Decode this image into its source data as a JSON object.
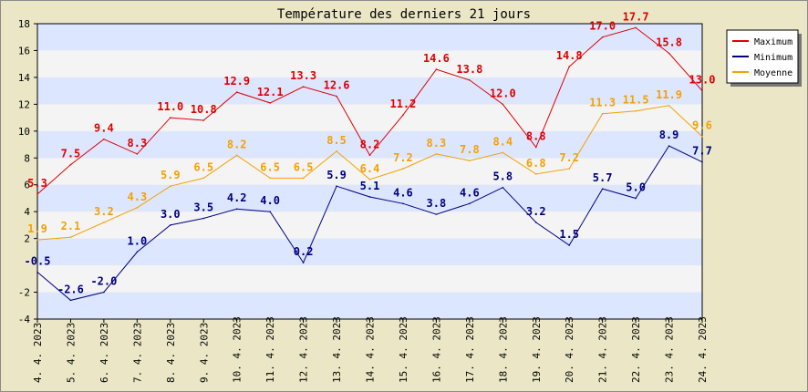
{
  "chart_data": {
    "type": "line",
    "title": "Température des derniers 21 jours",
    "x": [
      "4. 4. 2023",
      "5. 4. 2023",
      "6. 4. 2023",
      "7. 4. 2023",
      "8. 4. 2023",
      "9. 4. 2023",
      "10. 4. 2023",
      "11. 4. 2023",
      "12. 4. 2023",
      "13. 4. 2023",
      "14. 4. 2023",
      "15. 4. 2023",
      "16. 4. 2023",
      "17. 4. 2023",
      "18. 4. 2023",
      "19. 4. 2023",
      "20. 4. 2023",
      "21. 4. 2023",
      "22. 4. 2023",
      "23. 4. 2023",
      "24. 4. 2023"
    ],
    "ylim": [
      -4,
      18
    ],
    "yticks": [
      -4,
      -2,
      2,
      4,
      6,
      8,
      10,
      12,
      14,
      16,
      18
    ],
    "grid": "horizontal bands",
    "legend_position": "top-right",
    "series": [
      {
        "name": "Maximum",
        "color": "#e00000",
        "values": [
          5.3,
          7.5,
          9.4,
          8.3,
          11.0,
          10.8,
          12.9,
          12.1,
          13.3,
          12.6,
          8.2,
          11.2,
          14.6,
          13.8,
          12.0,
          8.8,
          14.8,
          17.0,
          17.7,
          15.8,
          13.0
        ],
        "labels": [
          "5.3",
          "7.5",
          "9.4",
          "8.3",
          "11.0",
          "10.8",
          "12.9",
          "12.1",
          "13.3",
          "12.6",
          "8.2",
          "11.2",
          "14.6",
          "13.8",
          "12.0",
          "8.8",
          "14.8",
          "17.0",
          "17.7",
          "15.8",
          "13.0"
        ]
      },
      {
        "name": "Minimum",
        "color": "#000080",
        "values": [
          -0.5,
          -2.6,
          -2.0,
          1.0,
          3.0,
          3.5,
          4.2,
          4.0,
          0.2,
          5.9,
          5.1,
          4.6,
          3.8,
          4.6,
          5.8,
          3.2,
          1.5,
          5.7,
          5.0,
          8.9,
          7.7
        ],
        "labels": [
          "-0.5",
          "-2.6",
          "-2.0",
          "1.0",
          "3.0",
          "3.5",
          "4.2",
          "4.0",
          "0.2",
          "5.9",
          "5.1",
          "4.6",
          "3.8",
          "4.6",
          "5.8",
          "3.2",
          "1.5",
          "5.7",
          "5.0",
          "8.9",
          "7.7"
        ]
      },
      {
        "name": "Moyenne",
        "color": "#f5a000",
        "values": [
          1.9,
          2.1,
          3.2,
          4.3,
          5.9,
          6.5,
          8.2,
          6.5,
          6.5,
          8.5,
          6.4,
          7.2,
          8.3,
          7.8,
          8.4,
          6.8,
          7.2,
          11.3,
          11.5,
          11.9,
          9.6
        ],
        "labels": [
          "1.9",
          "2.1",
          "3.2",
          "4.3",
          "5.9",
          "6.5",
          "8.2",
          "6.5",
          "6.5",
          "8.5",
          "6.4",
          "7.2",
          "8.3",
          "7.8",
          "8.4",
          "6.8",
          "7.2",
          "11.3",
          "11.5",
          "11.9",
          "9.6"
        ]
      }
    ]
  }
}
